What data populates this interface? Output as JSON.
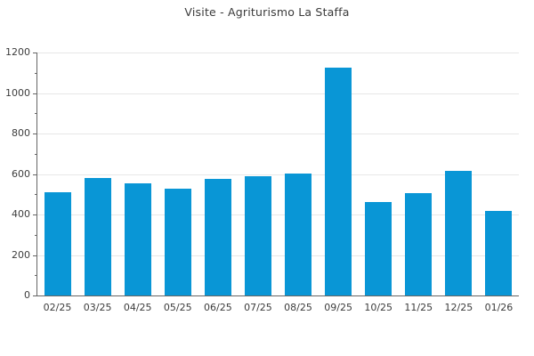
{
  "chart_data": {
    "type": "bar",
    "title": "Visite - Agriturismo La Staffa",
    "categories": [
      "02/25",
      "03/25",
      "04/25",
      "05/25",
      "06/25",
      "07/25",
      "08/25",
      "09/25",
      "10/25",
      "11/25",
      "12/25",
      "01/26"
    ],
    "values": [
      512,
      581,
      556,
      527,
      578,
      589,
      604,
      1126,
      461,
      505,
      616,
      417
    ],
    "xlabel": "",
    "ylabel": "",
    "ylim": [
      0,
      1200
    ],
    "ytick_step": 200,
    "yminor_step": 100,
    "ytick_labels": [
      "0",
      "200",
      "400",
      "600",
      "800",
      "1000",
      "1200"
    ],
    "grid": "horizontal",
    "legend": "none",
    "bar_color": "#0996d6",
    "grid_color": "#e7e7e7",
    "axis_color": "#666666",
    "tick_color": "#666666",
    "label_color": "#3c3c3c"
  }
}
